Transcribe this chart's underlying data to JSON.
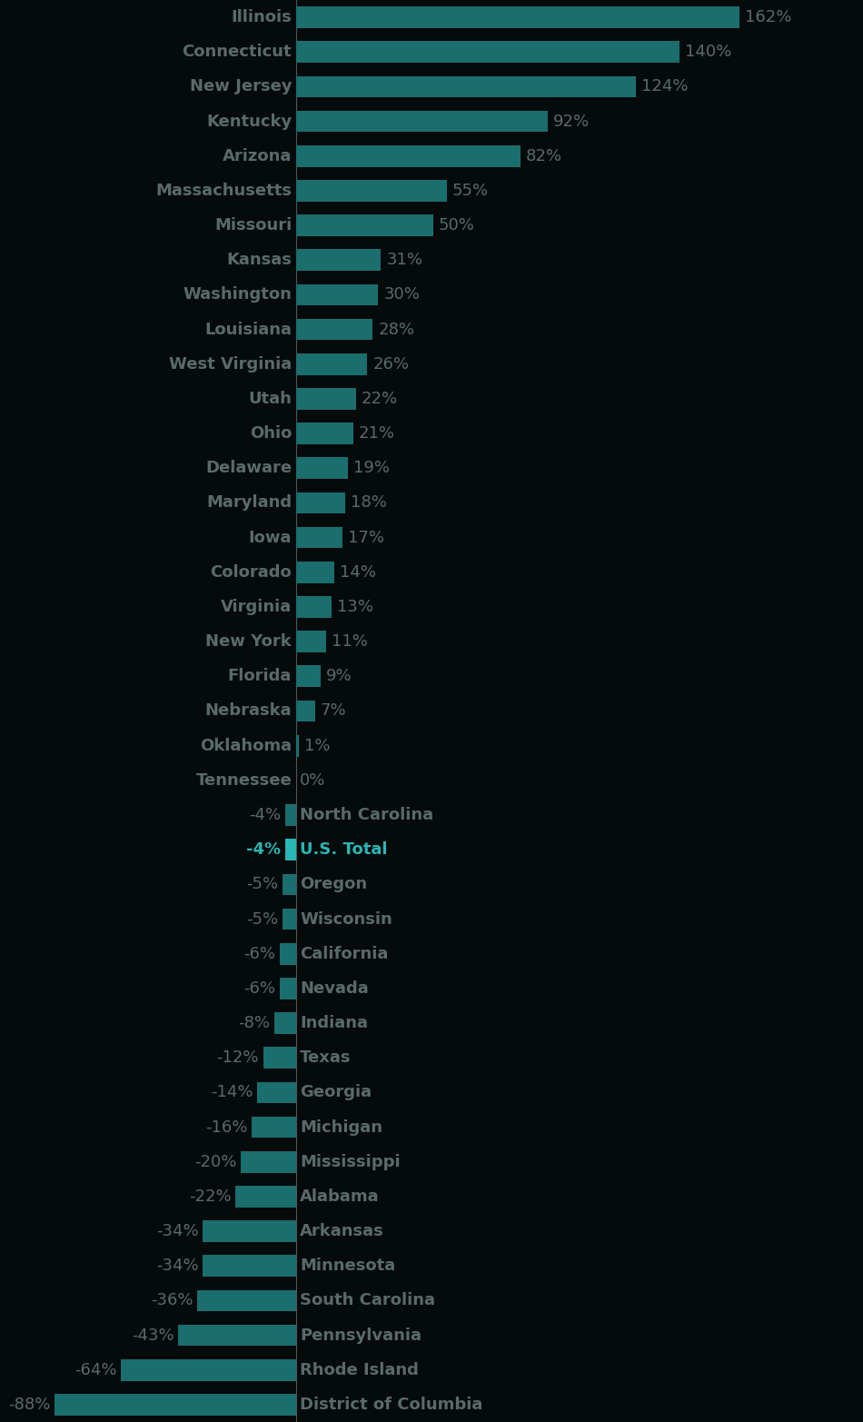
{
  "categories": [
    "Illinois",
    "Connecticut",
    "New Jersey",
    "Kentucky",
    "Arizona",
    "Massachusetts",
    "Missouri",
    "Kansas",
    "Washington",
    "Louisiana",
    "West Virginia",
    "Utah",
    "Ohio",
    "Delaware",
    "Maryland",
    "Iowa",
    "Colorado",
    "Virginia",
    "New York",
    "Florida",
    "Nebraska",
    "Oklahoma",
    "Tennessee",
    "North Carolina",
    "U.S. Total",
    "Oregon",
    "Wisconsin",
    "California",
    "Nevada",
    "Indiana",
    "Texas",
    "Georgia",
    "Michigan",
    "Mississippi",
    "Alabama",
    "Arkansas",
    "Minnesota",
    "South Carolina",
    "Pennsylvania",
    "Rhode Island",
    "District of Columbia"
  ],
  "values": [
    162,
    140,
    124,
    92,
    82,
    55,
    50,
    31,
    30,
    28,
    26,
    22,
    21,
    19,
    18,
    17,
    14,
    13,
    11,
    9,
    7,
    1,
    0,
    -4,
    -4,
    -5,
    -5,
    -6,
    -6,
    -8,
    -12,
    -14,
    -16,
    -20,
    -22,
    -34,
    -34,
    -36,
    -43,
    -64,
    -88
  ],
  "is_us_total": [
    false,
    false,
    false,
    false,
    false,
    false,
    false,
    false,
    false,
    false,
    false,
    false,
    false,
    false,
    false,
    false,
    false,
    false,
    false,
    false,
    false,
    false,
    false,
    false,
    true,
    false,
    false,
    false,
    false,
    false,
    false,
    false,
    false,
    false,
    false,
    false,
    false,
    false,
    false,
    false,
    false
  ],
  "bar_color": "#1a6e6e",
  "us_total_color": "#2ab5b5",
  "background_color": "#050a0a",
  "text_color": "#5a6a6a",
  "us_total_text_color": "#2ab5b5",
  "label_color": "#5a6a6a",
  "zero_line_color": "#555555",
  "figwidth": 9.5,
  "figheight": 15.65,
  "dpi": 100,
  "bar_height": 0.62,
  "fontsize": 13.0,
  "fontsize_pct": 13.0
}
